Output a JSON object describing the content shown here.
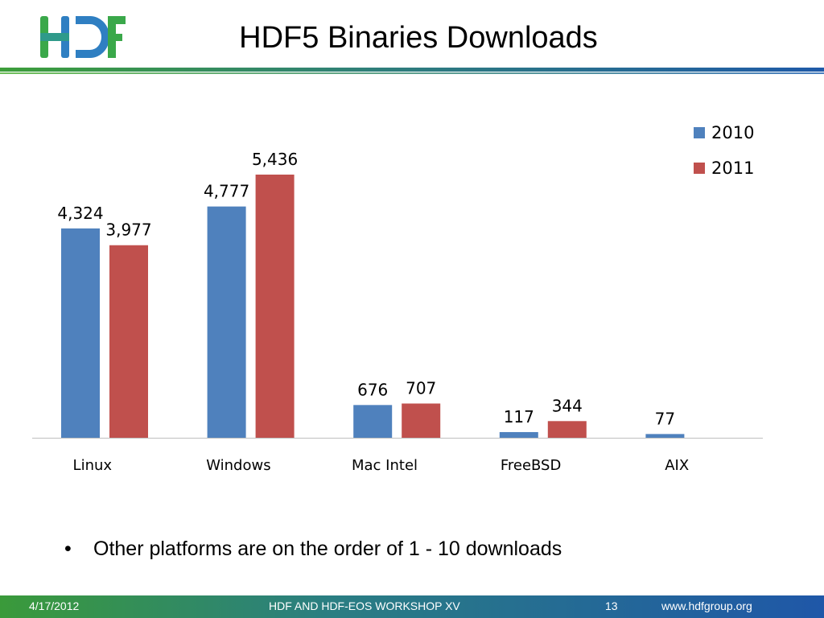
{
  "header": {
    "title": "HDF5 Binaries Downloads"
  },
  "logo": {
    "icon": "hdf-logo-icon",
    "text": "HDF",
    "colors": [
      "#2f7fc2",
      "#3aa84a"
    ]
  },
  "bullet": {
    "symbol": "•",
    "text": "Other platforms are on the order of 1 - 10 downloads"
  },
  "footer": {
    "date": "4/17/2012",
    "event": "HDF AND HDF-EOS WORKSHOP XV",
    "page": "13",
    "url": "www.hdfgroup.org"
  },
  "chart_data": {
    "type": "bar",
    "categories": [
      "Linux",
      "Windows",
      "Mac Intel",
      "FreeBSD",
      "AIX"
    ],
    "series": [
      {
        "name": "2010",
        "color": "#4f81bd",
        "values": [
          4324,
          4777,
          676,
          117,
          77
        ]
      },
      {
        "name": "2011",
        "color": "#c0504d",
        "values": [
          3977,
          5436,
          707,
          344,
          null
        ]
      }
    ],
    "data_labels": [
      [
        "4,324",
        "4,777",
        "676",
        "117",
        "77"
      ],
      [
        "3,977",
        "5,436",
        "707",
        "344",
        ""
      ]
    ],
    "ylim": [
      0,
      6000
    ],
    "grid": false,
    "legend_position": "top-right"
  }
}
